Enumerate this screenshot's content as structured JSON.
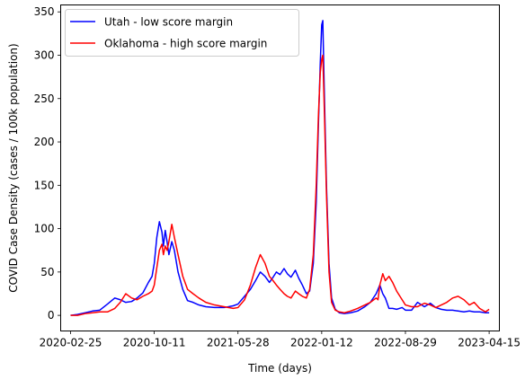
{
  "chart_data": {
    "type": "line",
    "title": "",
    "xlabel": "Time (days)",
    "ylabel": "COVID Case Density (cases / 100k population)",
    "x_tick_labels": [
      "2020-02-25",
      "2020-10-11",
      "2021-05-28",
      "2022-01-12",
      "2022-08-29",
      "2023-04-15"
    ],
    "y_ticks": [
      0,
      50,
      100,
      150,
      200,
      250,
      300,
      350
    ],
    "xlim": [
      "2020-01-29",
      "2023-05-13"
    ],
    "ylim": [
      -18,
      358
    ],
    "grid": false,
    "legend_position": "top-left",
    "series": [
      {
        "name": "Utah - low score margin",
        "color": "#0000ff",
        "x": [
          "2020-02-25",
          "2020-03-15",
          "2020-04-05",
          "2020-04-25",
          "2020-05-15",
          "2020-06-05",
          "2020-06-25",
          "2020-07-10",
          "2020-07-25",
          "2020-08-10",
          "2020-08-25",
          "2020-09-10",
          "2020-09-25",
          "2020-10-05",
          "2020-10-11",
          "2020-10-18",
          "2020-10-25",
          "2020-11-01",
          "2020-11-05",
          "2020-11-10",
          "2020-11-15",
          "2020-11-20",
          "2020-11-28",
          "2020-12-05",
          "2020-12-15",
          "2020-12-28",
          "2021-01-10",
          "2021-01-25",
          "2021-02-10",
          "2021-03-01",
          "2021-03-25",
          "2021-04-20",
          "2021-05-15",
          "2021-05-28",
          "2021-06-15",
          "2021-07-01",
          "2021-07-15",
          "2021-07-28",
          "2021-08-10",
          "2021-08-22",
          "2021-09-01",
          "2021-09-10",
          "2021-09-20",
          "2021-10-01",
          "2021-10-10",
          "2021-10-20",
          "2021-11-01",
          "2021-11-10",
          "2021-11-20",
          "2021-12-01",
          "2021-12-10",
          "2021-12-20",
          "2021-12-28",
          "2022-01-03",
          "2022-01-08",
          "2022-01-12",
          "2022-01-15",
          "2022-01-19",
          "2022-01-25",
          "2022-02-01",
          "2022-02-08",
          "2022-02-18",
          "2022-03-01",
          "2022-03-15",
          "2022-04-01",
          "2022-04-20",
          "2022-05-10",
          "2022-05-25",
          "2022-06-10",
          "2022-06-15",
          "2022-06-20",
          "2022-06-28",
          "2022-07-05",
          "2022-07-15",
          "2022-07-25",
          "2022-08-05",
          "2022-08-20",
          "2022-08-29",
          "2022-09-15",
          "2022-10-01",
          "2022-10-20",
          "2022-11-05",
          "2022-11-20",
          "2022-12-05",
          "2022-12-20",
          "2023-01-05",
          "2023-01-20",
          "2023-02-05",
          "2023-02-20",
          "2023-03-05",
          "2023-03-20",
          "2023-04-05",
          "2023-04-15"
        ],
        "values": [
          0,
          1,
          3,
          5,
          6,
          13,
          20,
          18,
          15,
          16,
          20,
          26,
          38,
          45,
          60,
          90,
          108,
          96,
          80,
          98,
          85,
          70,
          85,
          75,
          50,
          30,
          17,
          15,
          12,
          10,
          9,
          9,
          11,
          13,
          22,
          30,
          40,
          50,
          45,
          38,
          44,
          50,
          47,
          54,
          48,
          44,
          52,
          43,
          35,
          25,
          28,
          60,
          130,
          220,
          290,
          335,
          340,
          260,
          150,
          60,
          20,
          7,
          3,
          2,
          3,
          5,
          10,
          15,
          25,
          30,
          35,
          25,
          20,
          8,
          8,
          7,
          9,
          6,
          6,
          15,
          10,
          14,
          9,
          7,
          6,
          6,
          5,
          4,
          5,
          4,
          4,
          3,
          3
        ]
      },
      {
        "name": "Oklahoma - high score margin",
        "color": "#ff0000",
        "x": [
          "2020-02-25",
          "2020-03-15",
          "2020-04-05",
          "2020-04-25",
          "2020-05-15",
          "2020-06-05",
          "2020-06-25",
          "2020-07-10",
          "2020-07-25",
          "2020-08-10",
          "2020-08-25",
          "2020-09-10",
          "2020-09-25",
          "2020-10-05",
          "2020-10-11",
          "2020-10-18",
          "2020-10-25",
          "2020-11-01",
          "2020-11-05",
          "2020-11-10",
          "2020-11-15",
          "2020-11-20",
          "2020-11-28",
          "2020-12-05",
          "2020-12-15",
          "2020-12-28",
          "2021-01-10",
          "2021-01-25",
          "2021-02-10",
          "2021-03-01",
          "2021-03-25",
          "2021-04-20",
          "2021-05-15",
          "2021-05-28",
          "2021-06-15",
          "2021-07-01",
          "2021-07-15",
          "2021-07-28",
          "2021-08-10",
          "2021-08-22",
          "2021-09-01",
          "2021-09-10",
          "2021-09-20",
          "2021-10-01",
          "2021-10-10",
          "2021-10-20",
          "2021-11-01",
          "2021-11-10",
          "2021-11-20",
          "2021-12-01",
          "2021-12-10",
          "2021-12-20",
          "2021-12-28",
          "2022-01-03",
          "2022-01-08",
          "2022-01-12",
          "2022-01-15",
          "2022-01-19",
          "2022-01-25",
          "2022-02-01",
          "2022-02-08",
          "2022-02-18",
          "2022-03-01",
          "2022-03-15",
          "2022-04-01",
          "2022-04-20",
          "2022-05-10",
          "2022-05-25",
          "2022-06-10",
          "2022-06-15",
          "2022-06-20",
          "2022-06-28",
          "2022-07-05",
          "2022-07-15",
          "2022-07-25",
          "2022-08-05",
          "2022-08-20",
          "2022-08-29",
          "2022-09-15",
          "2022-10-01",
          "2022-10-20",
          "2022-11-05",
          "2022-11-20",
          "2022-12-05",
          "2022-12-20",
          "2023-01-05",
          "2023-01-20",
          "2023-02-05",
          "2023-02-20",
          "2023-03-05",
          "2023-03-20",
          "2023-04-05",
          "2023-04-15"
        ],
        "values": [
          0,
          0,
          2,
          3,
          4,
          4,
          8,
          15,
          25,
          20,
          18,
          22,
          25,
          28,
          35,
          55,
          75,
          82,
          70,
          80,
          75,
          85,
          105,
          90,
          70,
          45,
          30,
          25,
          20,
          15,
          12,
          10,
          8,
          9,
          18,
          35,
          55,
          70,
          60,
          45,
          40,
          35,
          30,
          25,
          22,
          20,
          28,
          25,
          22,
          20,
          30,
          70,
          150,
          230,
          280,
          295,
          300,
          240,
          140,
          50,
          15,
          6,
          4,
          3,
          5,
          8,
          12,
          15,
          20,
          18,
          35,
          48,
          40,
          45,
          38,
          28,
          18,
          12,
          10,
          10,
          14,
          12,
          9,
          12,
          15,
          20,
          22,
          18,
          12,
          15,
          8,
          4,
          7
        ]
      }
    ]
  }
}
